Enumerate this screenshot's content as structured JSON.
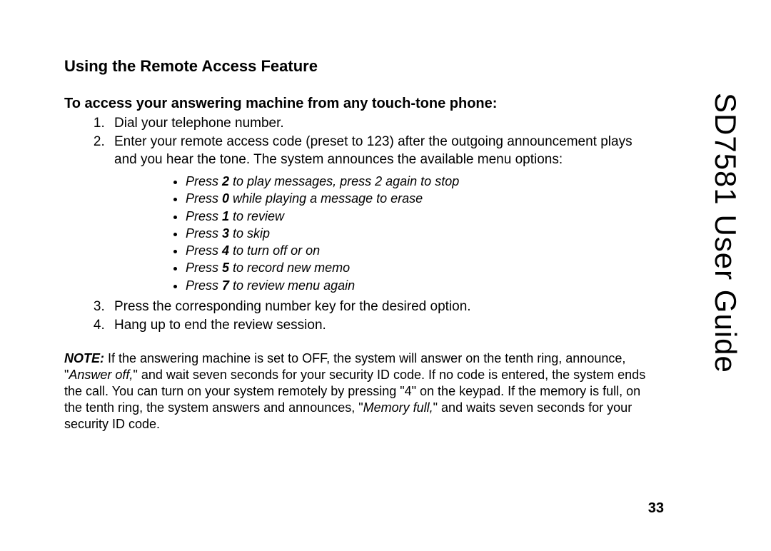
{
  "sideTitle": "SD7581 User Guide",
  "heading": "Using the Remote Access Feature",
  "subheading": "To access your answering machine from any touch-tone phone:",
  "steps": [
    "Dial your telephone number.",
    "Enter your remote access code (preset to 123) after the outgoing announcement plays and you hear the tone. The system announces the available menu options:",
    "Press the corresponding number key for the desired option.",
    "Hang up to end the review session."
  ],
  "menuOptions": [
    {
      "prefix": "Press ",
      "key": "2",
      "suffix": " to play messages, press 2 again to stop"
    },
    {
      "prefix": "Press ",
      "key": "0",
      "suffix": " while playing a message to erase"
    },
    {
      "prefix": "Press ",
      "key": "1",
      "suffix": " to review"
    },
    {
      "prefix": "Press ",
      "key": "3",
      "suffix": " to skip"
    },
    {
      "prefix": "Press ",
      "key": "4",
      "suffix": " to turn off or on"
    },
    {
      "prefix": "Press ",
      "key": "5",
      "suffix": " to record new memo"
    },
    {
      "prefix": "Press ",
      "key": "7",
      "suffix": " to review menu again"
    }
  ],
  "note": {
    "label": "NOTE:",
    "part1": " If the answering machine is set to OFF, the system will answer on the tenth ring, announce, \"",
    "em1": "Answer off,",
    "part2": "\" and wait seven seconds for your security ID code. If no code is entered, the system ends the call. You can turn on your system remotely by pressing \"4\" on the keypad. If the memory is full, on the tenth ring, the system answers and announces, \"",
    "em2": "Memory full,",
    "part3": "\" and waits seven seconds for your security ID code."
  },
  "pageNumber": "33",
  "style": {
    "pageWidth": 1080,
    "pageHeight": 772,
    "background": "#ffffff",
    "textColor": "#000000",
    "h1FontSize": 22,
    "h2FontSize": 20,
    "bodyFontSize": 19,
    "menuFontSize": 18,
    "sideTitleFontSize": 42,
    "fontFamily": "Arial, Helvetica, sans-serif"
  }
}
